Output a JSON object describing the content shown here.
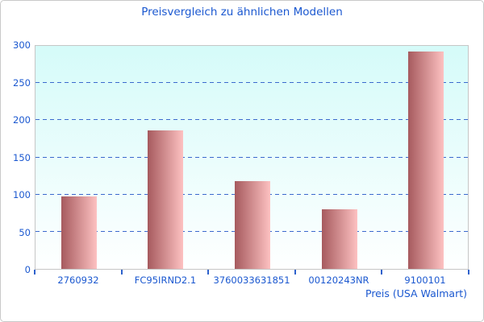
{
  "window": {
    "background": "#ffffff",
    "border_color": "#c9c9c9"
  },
  "chart_data": {
    "type": "bar",
    "title": "Preisvergleich zu ähnlichen Modellen",
    "xlabel": "Preis (USA Walmart)",
    "ylabel": "",
    "categories": [
      "2760932",
      "FC95IRND2.1",
      "3760033631851",
      "00120243NR",
      "9100101"
    ],
    "values": [
      97,
      186,
      118,
      80,
      292
    ],
    "ylim": [
      0,
      300
    ],
    "yticks": [
      0,
      50,
      100,
      150,
      200,
      250,
      300
    ],
    "grid": "horizontal-dashed",
    "legend": "none",
    "colors": {
      "title_text": "#1b58d0",
      "axis_text": "#1b58d0",
      "gridline": "#3b69cd",
      "tick": "#2e62cc",
      "bar_gradient_left": "#a65a5e",
      "bar_gradient_right": "#fdc1c1",
      "plot_bg_top": "#d5fbf9",
      "plot_bg_bottom": "#feffff",
      "plot_border": "#c6c6c6"
    }
  }
}
